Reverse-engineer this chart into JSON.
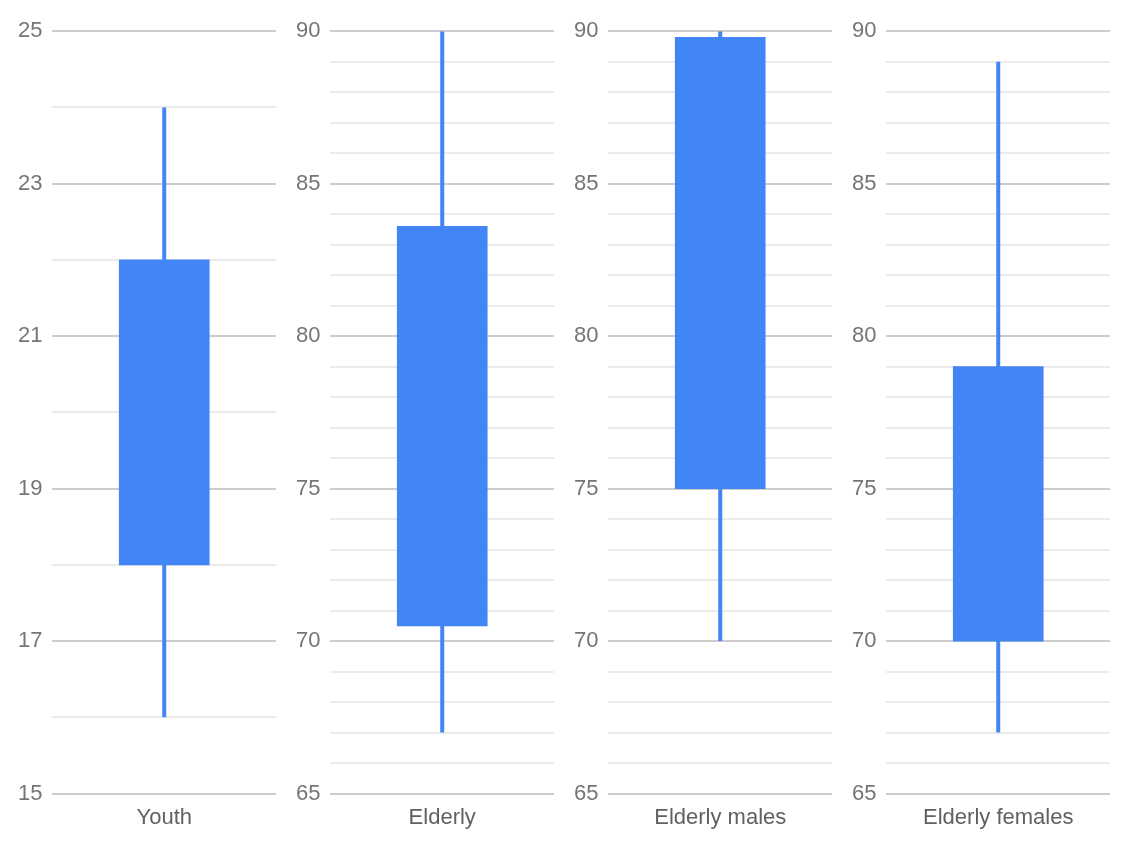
{
  "chart_data": [
    {
      "type": "candlestick",
      "categories": [
        "Youth"
      ],
      "ohlc": [
        [
          18,
          24,
          16,
          22
        ]
      ],
      "color": "#4285f4",
      "ylim": [
        15,
        25
      ],
      "yticks": [
        15,
        {
          "value": 16,
          "label": null
        },
        17,
        {
          "value": 18,
          "label": null
        },
        19,
        {
          "value": 20,
          "label": null
        },
        21,
        {
          "value": 22,
          "label": null
        },
        23,
        {
          "value": 24,
          "label": null
        },
        25
      ],
      "grid": "y"
    },
    {
      "type": "candlestick",
      "categories": [
        "Elderly"
      ],
      "ohlc": [
        [
          70.5,
          90,
          67,
          83.6
        ]
      ],
      "color": "#4285f4",
      "ylim": [
        65,
        90
      ],
      "yticks": [
        65,
        {
          "value": 66,
          "label": null
        },
        {
          "value": 67,
          "label": null
        },
        {
          "value": 68,
          "label": null
        },
        {
          "value": 69,
          "label": null
        },
        70,
        {
          "value": 71,
          "label": null
        },
        {
          "value": 72,
          "label": null
        },
        {
          "value": 73,
          "label": null
        },
        {
          "value": 74,
          "label": null
        },
        75,
        {
          "value": 76,
          "label": null
        },
        {
          "value": 77,
          "label": null
        },
        {
          "value": 78,
          "label": null
        },
        {
          "value": 79,
          "label": null
        },
        80,
        {
          "value": 81,
          "label": null
        },
        {
          "value": 82,
          "label": null
        },
        {
          "value": 83,
          "label": null
        },
        {
          "value": 84,
          "label": null
        },
        85,
        {
          "value": 86,
          "label": null
        },
        {
          "value": 87,
          "label": null
        },
        {
          "value": 88,
          "label": null
        },
        {
          "value": 89,
          "label": null
        },
        90
      ],
      "grid": "y"
    },
    {
      "type": "candlestick",
      "categories": [
        "Elderly males"
      ],
      "ohlc": [
        [
          75,
          90,
          70,
          89.8
        ]
      ],
      "color": "#4285f4",
      "ylim": [
        65,
        90
      ],
      "yticks": [
        65,
        {
          "value": 66,
          "label": null
        },
        {
          "value": 67,
          "label": null
        },
        {
          "value": 68,
          "label": null
        },
        {
          "value": 69,
          "label": null
        },
        70,
        {
          "value": 71,
          "label": null
        },
        {
          "value": 72,
          "label": null
        },
        {
          "value": 73,
          "label": null
        },
        {
          "value": 74,
          "label": null
        },
        75,
        {
          "value": 76,
          "label": null
        },
        {
          "value": 77,
          "label": null
        },
        {
          "value": 78,
          "label": null
        },
        {
          "value": 79,
          "label": null
        },
        80,
        {
          "value": 81,
          "label": null
        },
        {
          "value": 82,
          "label": null
        },
        {
          "value": 83,
          "label": null
        },
        {
          "value": 84,
          "label": null
        },
        85,
        {
          "value": 86,
          "label": null
        },
        {
          "value": 87,
          "label": null
        },
        {
          "value": 88,
          "label": null
        },
        {
          "value": 89,
          "label": null
        },
        90
      ],
      "grid": "y"
    },
    {
      "type": "candlestick",
      "categories": [
        "Elderly females"
      ],
      "ohlc": [
        [
          70,
          89,
          67,
          79
        ]
      ],
      "color": "#4285f4",
      "ylim": [
        65,
        90
      ],
      "yticks": [
        65,
        {
          "value": 66,
          "label": null
        },
        {
          "value": 67,
          "label": null
        },
        {
          "value": 68,
          "label": null
        },
        {
          "value": 69,
          "label": null
        },
        70,
        {
          "value": 71,
          "label": null
        },
        {
          "value": 72,
          "label": null
        },
        {
          "value": 73,
          "label": null
        },
        {
          "value": 74,
          "label": null
        },
        75,
        {
          "value": 76,
          "label": null
        },
        {
          "value": 77,
          "label": null
        },
        {
          "value": 78,
          "label": null
        },
        {
          "value": 79,
          "label": null
        },
        80,
        {
          "value": 81,
          "label": null
        },
        {
          "value": 82,
          "label": null
        },
        {
          "value": 83,
          "label": null
        },
        {
          "value": 84,
          "label": null
        },
        85,
        {
          "value": 86,
          "label": null
        },
        {
          "value": 87,
          "label": null
        },
        {
          "value": 88,
          "label": null
        },
        {
          "value": 89,
          "label": null
        },
        90
      ],
      "grid": "y"
    }
  ]
}
